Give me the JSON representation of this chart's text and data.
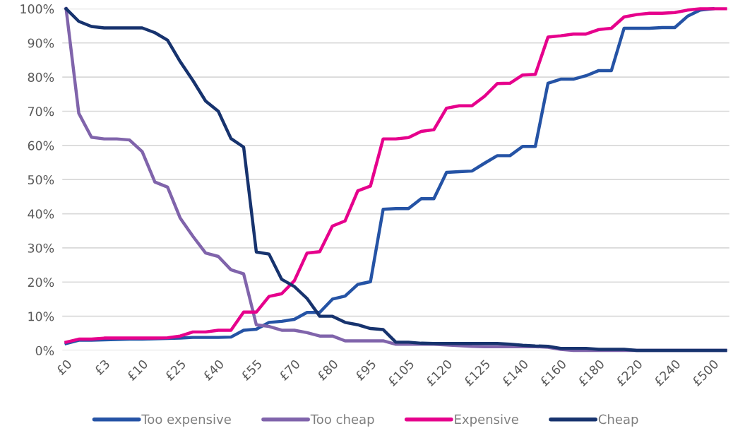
{
  "chart_data": {
    "type": "line",
    "categories": [
      "£0",
      null,
      null,
      "£3",
      null,
      null,
      "£10",
      null,
      null,
      "£25",
      null,
      null,
      "£40",
      null,
      null,
      "£55",
      null,
      null,
      "£70",
      null,
      null,
      "£80",
      null,
      null,
      "£95",
      null,
      null,
      "£105",
      null,
      null,
      "£120",
      null,
      null,
      "£125",
      null,
      null,
      "£140",
      null,
      null,
      "£160",
      null,
      null,
      "£180",
      null,
      null,
      "£220",
      null,
      null,
      "£240",
      null,
      null,
      "£500",
      null
    ],
    "series": [
      {
        "name": "Too expensive",
        "color": "#2553a5",
        "values": [
          2.0,
          3.0,
          3.0,
          3.1,
          3.2,
          3.3,
          3.3,
          3.4,
          3.5,
          3.6,
          3.8,
          3.8,
          3.8,
          3.9,
          5.9,
          6.2,
          8.2,
          8.5,
          9.1,
          11.1,
          11.1,
          15,
          15.9,
          19.3,
          20.1,
          41.3,
          41.5,
          41.5,
          44.4,
          44.4,
          52.1,
          52.3,
          52.5,
          54.8,
          57.0,
          57.0,
          59.7,
          59.7,
          78.2,
          79.4,
          79.4,
          80.4,
          81.9,
          81.9,
          94.3,
          94.3,
          94.3,
          94.5,
          94.5,
          97.8,
          99.6,
          100,
          null
        ]
      },
      {
        "name": "Too cheap",
        "color": "#8064ab",
        "values": [
          100,
          69.4,
          62.4,
          61.9,
          61.9,
          61.6,
          58.2,
          49.3,
          47.8,
          38.7,
          33.4,
          28.5,
          27.5,
          23.6,
          22.4,
          7.5,
          7.0,
          5.9,
          5.9,
          5.2,
          4.2,
          4.2,
          2.8,
          2.8,
          2.8,
          2.8,
          1.8,
          1.8,
          1.8,
          1.8,
          1.6,
          1.4,
          1.2,
          1.1,
          1.1,
          1.1,
          1.1,
          1.1,
          0.9,
          0.3,
          0,
          0,
          0,
          0,
          0,
          0,
          0,
          0,
          0,
          0,
          0,
          0,
          0
        ]
      },
      {
        "name": "Expensive",
        "color": "#e6008c",
        "values": [
          2.4,
          3.3,
          3.3,
          3.6,
          3.6,
          3.6,
          3.6,
          3.6,
          3.7,
          4.2,
          5.4,
          5.4,
          5.9,
          5.9,
          11.2,
          11.2,
          15.8,
          16.6,
          20.4,
          28.5,
          28.9,
          36.4,
          37.9,
          46.7,
          48.1,
          61.9,
          61.9,
          62.3,
          64.1,
          64.6,
          70.9,
          71.6,
          71.6,
          74.4,
          78.1,
          78.2,
          80.6,
          80.8,
          91.7,
          92.1,
          92.6,
          92.6,
          93.9,
          94.3,
          97.6,
          98.3,
          98.7,
          98.7,
          98.9,
          99.6,
          100,
          100,
          100
        ]
      },
      {
        "name": "Cheap",
        "color": "#17336e",
        "values": [
          100,
          96.3,
          94.8,
          94.4,
          94.4,
          94.4,
          94.4,
          93,
          90.8,
          84.5,
          79,
          73,
          70,
          62,
          59.5,
          28.8,
          28.2,
          20.8,
          18.7,
          15.2,
          10,
          10,
          8.2,
          7.5,
          6.4,
          6.1,
          2.4,
          2.4,
          2.1,
          2.0,
          2.0,
          2.0,
          2.0,
          2.0,
          2.0,
          1.8,
          1.5,
          1.3,
          1.2,
          0.6,
          0.6,
          0.6,
          0.3,
          0.3,
          0.3,
          0,
          0,
          0,
          0,
          0,
          0,
          0,
          0
        ]
      }
    ],
    "ylim": [
      0,
      100
    ],
    "yticks": [
      {
        "value": 0,
        "label": "0%"
      },
      {
        "value": 10,
        "label": "10%"
      },
      {
        "value": 20,
        "label": "20%"
      },
      {
        "value": 30,
        "label": "30%"
      },
      {
        "value": 40,
        "label": "40%"
      },
      {
        "value": 50,
        "label": "50%"
      },
      {
        "value": 60,
        "label": "60%"
      },
      {
        "value": 70,
        "label": "70%"
      },
      {
        "value": 80,
        "label": "80%"
      },
      {
        "value": 90,
        "label": "90%"
      },
      {
        "value": 100,
        "label": "100%"
      }
    ],
    "grid": "y",
    "legend": "bottom",
    "marker": "none",
    "line_style": "solid"
  }
}
